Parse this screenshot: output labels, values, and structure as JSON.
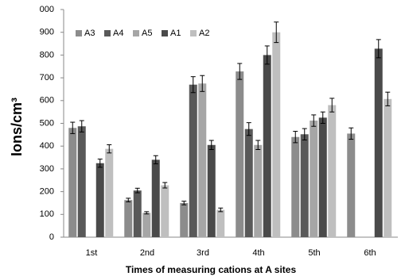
{
  "chart_data": {
    "type": "bar",
    "x_label": "Times of measuring cations at A sites",
    "y_label": "Ions/cm³",
    "categories": [
      "1st",
      "2nd",
      "3rd",
      "4th",
      "5th",
      "6th"
    ],
    "series": [
      {
        "name": "A3",
        "color": "#8c8c8c",
        "values": [
          480,
          163,
          150,
          728,
          440,
          455
        ],
        "errors": [
          25,
          8,
          8,
          35,
          25,
          25
        ]
      },
      {
        "name": "A4",
        "color": "#595959",
        "values": [
          487,
          205,
          670,
          475,
          452,
          null
        ],
        "errors": [
          25,
          10,
          35,
          28,
          25,
          null
        ]
      },
      {
        "name": "A5",
        "color": "#a6a6a6",
        "values": [
          null,
          107,
          675,
          405,
          512,
          null
        ],
        "errors": [
          null,
          5,
          35,
          20,
          25,
          null
        ]
      },
      {
        "name": "A1",
        "color": "#4a4a4a",
        "values": [
          325,
          340,
          405,
          800,
          525,
          828
        ],
        "errors": [
          18,
          18,
          20,
          40,
          25,
          40
        ]
      },
      {
        "name": "A2",
        "color": "#bfbfbf",
        "values": [
          388,
          228,
          120,
          900,
          580,
          607
        ],
        "errors": [
          18,
          12,
          8,
          45,
          30,
          30
        ]
      }
    ],
    "ylim": [
      0,
      1000
    ],
    "yticks": [
      0,
      100,
      200,
      300,
      400,
      500,
      600,
      700,
      800,
      900,
      {
        "value": 1000,
        "label": "000"
      }
    ],
    "grid": false,
    "legend": "top-left"
  }
}
